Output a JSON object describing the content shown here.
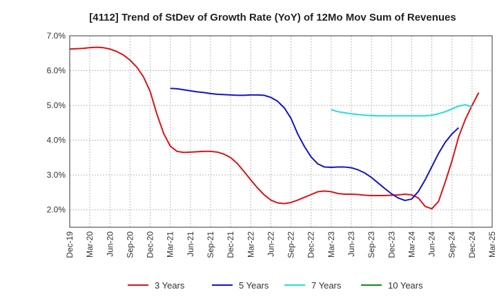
{
  "chart_data": {
    "type": "line",
    "title": "[4112]  Trend of StDev of Growth Rate (YoY) of 12Mo Mov Sum of Revenues",
    "xlabel": "",
    "ylabel": "",
    "ylim": [
      1.5,
      7.0
    ],
    "yticks": [
      2.0,
      3.0,
      4.0,
      5.0,
      6.0,
      7.0
    ],
    "ytick_labels": [
      "2.0%",
      "3.0%",
      "4.0%",
      "5.0%",
      "6.0%",
      "7.0%"
    ],
    "x_ticks": [
      "Dec-19",
      "Mar-20",
      "Jun-20",
      "Sep-20",
      "Dec-20",
      "Mar-21",
      "Jun-21",
      "Sep-21",
      "Dec-21",
      "Mar-22",
      "Jun-22",
      "Sep-22",
      "Dec-22",
      "Mar-23",
      "Jun-23",
      "Sep-23",
      "Dec-23",
      "Mar-24",
      "Jun-24",
      "Sep-24",
      "Dec-24",
      "Mar-25"
    ],
    "x_start": "Dec-19",
    "legend_position": "bottom",
    "grid": true,
    "series": [
      {
        "name": "3 Years",
        "color": "#dd1111",
        "start_month_index": 0,
        "values": [
          6.62,
          6.63,
          6.64,
          6.66,
          6.67,
          6.66,
          6.62,
          6.55,
          6.45,
          6.3,
          6.1,
          5.82,
          5.4,
          4.75,
          4.2,
          3.83,
          3.68,
          3.65,
          3.66,
          3.67,
          3.68,
          3.68,
          3.66,
          3.6,
          3.5,
          3.33,
          3.1,
          2.86,
          2.63,
          2.43,
          2.28,
          2.2,
          2.18,
          2.21,
          2.28,
          2.36,
          2.44,
          2.52,
          2.54,
          2.52,
          2.47,
          2.45,
          2.45,
          2.44,
          2.42,
          2.41,
          2.41,
          2.41,
          2.42,
          2.43,
          2.45,
          2.43,
          2.34,
          2.1,
          2.03,
          2.24,
          2.8,
          3.4,
          4.1,
          4.6,
          5.0,
          5.37
        ]
      },
      {
        "name": "5 Years",
        "color": "#1111cc",
        "start_month_index": 15,
        "values": [
          5.49,
          5.48,
          5.45,
          5.42,
          5.39,
          5.37,
          5.34,
          5.32,
          5.31,
          5.3,
          5.29,
          5.29,
          5.3,
          5.3,
          5.29,
          5.23,
          5.12,
          4.93,
          4.63,
          4.18,
          3.82,
          3.52,
          3.32,
          3.23,
          3.22,
          3.23,
          3.23,
          3.21,
          3.15,
          3.06,
          2.93,
          2.77,
          2.61,
          2.46,
          2.34,
          2.27,
          2.31,
          2.53,
          2.86,
          3.24,
          3.62,
          3.94,
          4.18,
          4.36
        ]
      },
      {
        "name": "7 Years",
        "color": "#22dddd",
        "start_month_index": 39,
        "values": [
          4.88,
          4.82,
          4.79,
          4.76,
          4.74,
          4.72,
          4.71,
          4.7,
          4.7,
          4.7,
          4.7,
          4.7,
          4.7,
          4.7,
          4.7,
          4.72,
          4.76,
          4.82,
          4.9,
          4.98,
          5.02,
          4.95
        ]
      },
      {
        "name": "10 Years",
        "color": "#118811",
        "start_month_index": 0,
        "values": []
      }
    ]
  }
}
